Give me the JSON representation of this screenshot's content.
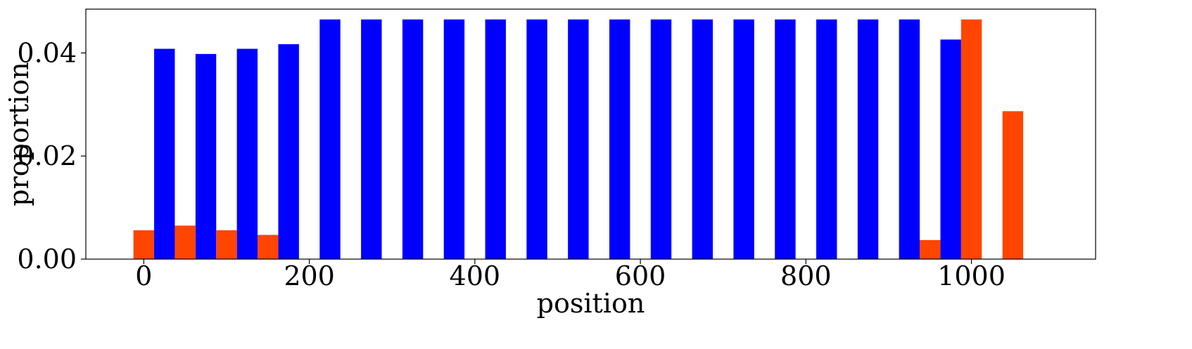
{
  "chart_data": {
    "type": "bar",
    "xlabel": "position",
    "ylabel": "proportion",
    "xlim": [
      -70,
      1150
    ],
    "ylim": [
      0,
      0.0485
    ],
    "xticks": [
      0,
      200,
      400,
      600,
      800,
      1000
    ],
    "xtick_labels": [
      "0",
      "200",
      "400",
      "600",
      "800",
      "1000"
    ],
    "yticks": [
      0.0,
      0.02,
      0.04
    ],
    "ytick_labels": [
      "0.00",
      "0.02",
      "0.04"
    ],
    "grid": false,
    "bar_width": 25,
    "series": [
      {
        "color": "#0000ff",
        "points": [
          {
            "x": 25,
            "y": 0.0408
          },
          {
            "x": 75,
            "y": 0.0398
          },
          {
            "x": 125,
            "y": 0.0408
          },
          {
            "x": 175,
            "y": 0.0417
          },
          {
            "x": 225,
            "y": 0.0465
          },
          {
            "x": 275,
            "y": 0.0465
          },
          {
            "x": 325,
            "y": 0.0465
          },
          {
            "x": 375,
            "y": 0.0465
          },
          {
            "x": 425,
            "y": 0.0465
          },
          {
            "x": 475,
            "y": 0.0465
          },
          {
            "x": 525,
            "y": 0.0465
          },
          {
            "x": 575,
            "y": 0.0465
          },
          {
            "x": 625,
            "y": 0.0465
          },
          {
            "x": 675,
            "y": 0.0465
          },
          {
            "x": 725,
            "y": 0.0465
          },
          {
            "x": 775,
            "y": 0.0465
          },
          {
            "x": 825,
            "y": 0.0465
          },
          {
            "x": 875,
            "y": 0.0465
          },
          {
            "x": 925,
            "y": 0.0465
          },
          {
            "x": 975,
            "y": 0.0426
          }
        ]
      },
      {
        "color": "#ff4500",
        "points": [
          {
            "x": 0,
            "y": 0.0056
          },
          {
            "x": 50,
            "y": 0.0065
          },
          {
            "x": 100,
            "y": 0.0056
          },
          {
            "x": 150,
            "y": 0.0047
          },
          {
            "x": 950,
            "y": 0.0037
          },
          {
            "x": 1000,
            "y": 0.0465
          },
          {
            "x": 1050,
            "y": 0.0287
          }
        ]
      }
    ]
  }
}
